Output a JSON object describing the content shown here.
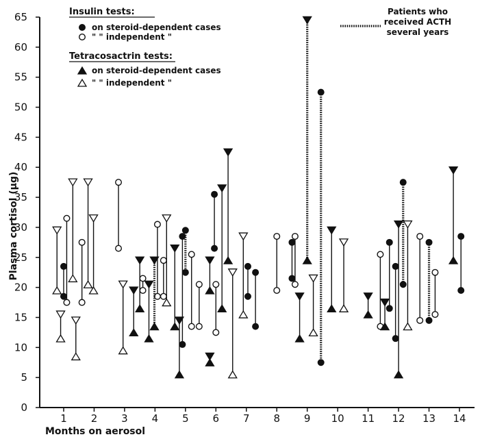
{
  "chart_data": {
    "type": "scatter",
    "xlabel": "Months on aerosol",
    "ylabel": "Plasma cortisol (µg)",
    "xlim": [
      0.55,
      14.2
    ],
    "ylim": [
      0,
      65
    ],
    "x_ticks": [
      "1",
      "2",
      "3",
      "4",
      "5",
      "6",
      "7",
      "8",
      "9",
      "10",
      "11",
      "12",
      "13",
      "14"
    ],
    "y_ticks": [
      "0",
      "5",
      "10",
      "15",
      "20",
      "25",
      "30",
      "35",
      "40",
      "45",
      "50",
      "55",
      "60",
      "65"
    ],
    "grid": false,
    "legend": {
      "placement": "top-left and top-center",
      "groups": [
        {
          "heading": "Insulin tests:",
          "rows": [
            {
              "symbol": "filled-circle",
              "text": "on steroid-dependent cases"
            },
            {
              "symbol": "open-circle",
              "text": "\"    \"   independent    \""
            }
          ]
        },
        {
          "heading": "Tetracosactrin tests:",
          "rows": [
            {
              "symbol": "filled-triangle",
              "text": "on steroid-dependent cases"
            },
            {
              "symbol": "open-triangle",
              "text": "\"    \"   independent    \""
            }
          ]
        }
      ],
      "dotted_line_label": [
        "Patients who",
        "received ACTH",
        "several years"
      ]
    },
    "series": [
      {
        "name": "Insulin tests on steroid-dependent cases",
        "marker": "filled-circle",
        "pairs": [
          {
            "x": 1.0,
            "y0": 18.5,
            "y1": 23.5
          },
          {
            "x": 4.9,
            "y0": 10.5,
            "y1": 28.5
          },
          {
            "x": 5.0,
            "y0": 22.5,
            "y1": 29.5,
            "dotted": true
          },
          {
            "x": 5.95,
            "y0": 26.5,
            "y1": 35.5
          },
          {
            "x": 7.05,
            "y0": 18.5,
            "y1": 23.5
          },
          {
            "x": 7.3,
            "y0": 13.5,
            "y1": 22.5
          },
          {
            "x": 8.5,
            "y0": 21.5,
            "y1": 27.5
          },
          {
            "x": 9.45,
            "y0": 7.5,
            "y1": 52.5,
            "dotted": true
          },
          {
            "x": 11.7,
            "y0": 16.5,
            "y1": 27.5
          },
          {
            "x": 11.9,
            "y0": 11.5,
            "y1": 23.5
          },
          {
            "x": 12.15,
            "y0": 20.5,
            "y1": 37.5,
            "dotted": true
          },
          {
            "x": 13.0,
            "y0": 14.5,
            "y1": 27.5,
            "dotted": true
          },
          {
            "x": 14.05,
            "y0": 19.5,
            "y1": 28.5
          }
        ]
      },
      {
        "name": "Insulin tests on steroid-independent cases",
        "marker": "open-circle",
        "pairs": [
          {
            "x": 1.1,
            "y0": 17.5,
            "y1": 31.5
          },
          {
            "x": 1.6,
            "y0": 17.5,
            "y1": 27.5
          },
          {
            "x": 2.8,
            "y0": 26.5,
            "y1": 37.5
          },
          {
            "x": 3.6,
            "y0": 19.5,
            "y1": 21.5
          },
          {
            "x": 4.08,
            "y0": 18.5,
            "y1": 30.5
          },
          {
            "x": 4.28,
            "y0": 18.5,
            "y1": 24.5
          },
          {
            "x": 5.2,
            "y0": 13.5,
            "y1": 25.5
          },
          {
            "x": 5.45,
            "y0": 13.5,
            "y1": 20.5
          },
          {
            "x": 6.0,
            "y0": 12.5,
            "y1": 20.5
          },
          {
            "x": 8.0,
            "y0": 19.5,
            "y1": 28.5
          },
          {
            "x": 8.6,
            "y0": 20.5,
            "y1": 28.5
          },
          {
            "x": 11.4,
            "y0": 13.5,
            "y1": 25.5
          },
          {
            "x": 12.7,
            "y0": 14.5,
            "y1": 28.5
          },
          {
            "x": 13.2,
            "y0": 15.5,
            "y1": 22.5
          }
        ]
      },
      {
        "name": "Tetracosactrin tests on steroid-dependent cases",
        "marker": "filled-triangle",
        "pairs": [
          {
            "x": 3.3,
            "y0": 12.5,
            "y1": 19.5
          },
          {
            "x": 3.5,
            "y0": 16.5,
            "y1": 24.5
          },
          {
            "x": 3.8,
            "y0": 11.5,
            "y1": 20.5
          },
          {
            "x": 3.98,
            "y0": 13.5,
            "y1": 24.5,
            "dotted": true
          },
          {
            "x": 4.65,
            "y0": 13.5,
            "y1": 26.5
          },
          {
            "x": 4.8,
            "y0": 5.5,
            "y1": 14.5
          },
          {
            "x": 5.8,
            "y0": 7.5,
            "y1": 8.5
          },
          {
            "x": 5.8,
            "y0": 19.5,
            "y1": 24.5
          },
          {
            "x": 6.2,
            "y0": 16.5,
            "y1": 36.5
          },
          {
            "x": 6.4,
            "y0": 24.5,
            "y1": 42.5
          },
          {
            "x": 8.75,
            "y0": 11.5,
            "y1": 18.5
          },
          {
            "x": 9.0,
            "y0": 24.5,
            "y1": 64.5,
            "dotted": true
          },
          {
            "x": 9.8,
            "y0": 16.5,
            "y1": 29.5
          },
          {
            "x": 11.0,
            "y0": 15.5,
            "y1": 18.5
          },
          {
            "x": 11.55,
            "y0": 13.5,
            "y1": 17.5
          },
          {
            "x": 12.0,
            "y0": 5.5,
            "y1": 30.5
          },
          {
            "x": 13.8,
            "y0": 24.5,
            "y1": 39.5
          }
        ]
      },
      {
        "name": "Tetracosactrin tests on steroid-independent cases",
        "marker": "open-triangle",
        "pairs": [
          {
            "x": 0.78,
            "y0": 19.5,
            "y1": 29.5
          },
          {
            "x": 0.9,
            "y0": 11.5,
            "y1": 15.5
          },
          {
            "x": 1.3,
            "y0": 21.5,
            "y1": 37.5
          },
          {
            "x": 1.4,
            "y0": 8.5,
            "y1": 14.5
          },
          {
            "x": 1.8,
            "y0": 20.5,
            "y1": 37.5
          },
          {
            "x": 1.98,
            "y0": 19.5,
            "y1": 31.5
          },
          {
            "x": 2.95,
            "y0": 9.5,
            "y1": 20.5
          },
          {
            "x": 4.38,
            "y0": 17.5,
            "y1": 31.5
          },
          {
            "x": 6.55,
            "y0": 5.5,
            "y1": 22.5
          },
          {
            "x": 6.9,
            "y0": 15.5,
            "y1": 28.5
          },
          {
            "x": 9.2,
            "y0": 12.5,
            "y1": 21.5
          },
          {
            "x": 10.2,
            "y0": 16.5,
            "y1": 27.5
          },
          {
            "x": 12.3,
            "y0": 13.5,
            "y1": 30.5
          }
        ]
      }
    ]
  }
}
